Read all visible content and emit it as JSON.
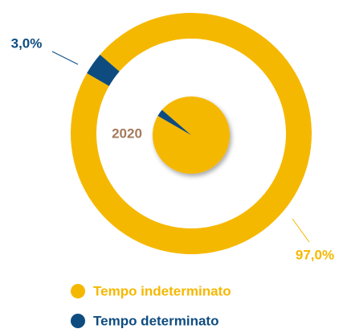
{
  "chart_data": {
    "type": "pie",
    "center_label": "2020",
    "categories": [
      "Tempo indeterminato",
      "Tempo determinato"
    ],
    "values": [
      97,
      3
    ],
    "value_labels": [
      "97,0%",
      "3,0%"
    ],
    "colors": [
      "#f5b800",
      "#0e4c80"
    ],
    "legend": "bottom"
  }
}
